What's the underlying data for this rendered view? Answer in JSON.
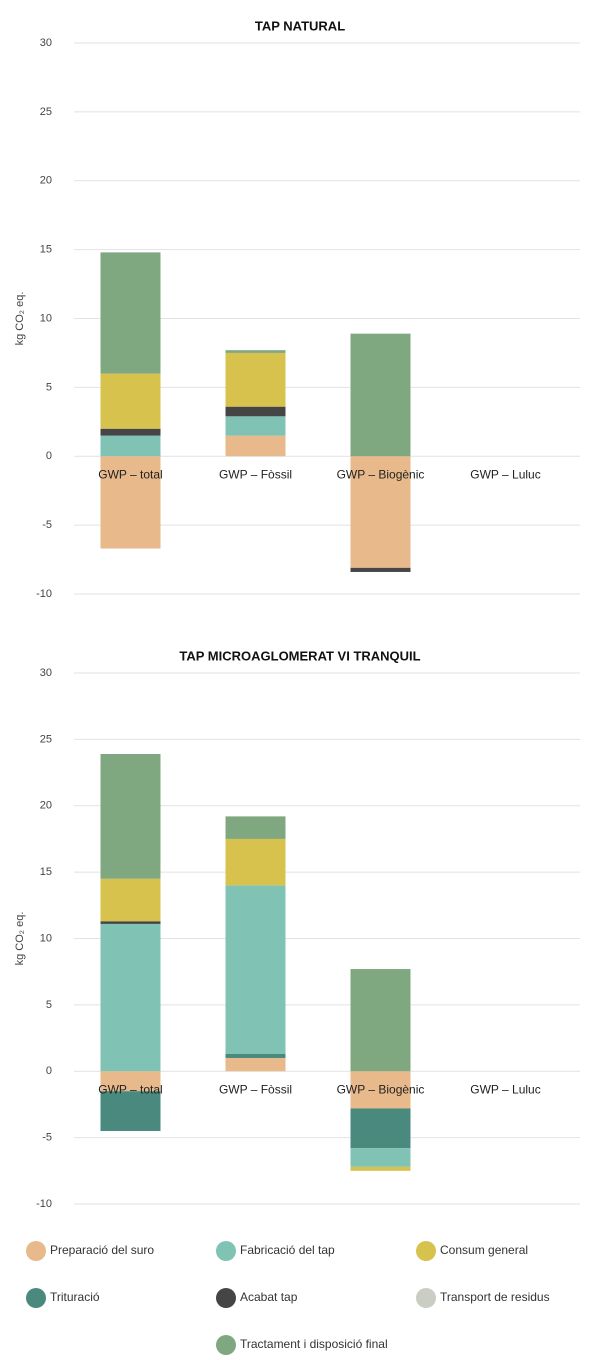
{
  "legend": [
    {
      "name": "Preparació del suro",
      "color": "#e8b98a"
    },
    {
      "name": "Trituració",
      "color": "#4a8a7e"
    },
    {
      "name": "Fabricació del tap",
      "color": "#80c3b5"
    },
    {
      "name": "Acabat tap",
      "color": "#454545"
    },
    {
      "name": "Consum general",
      "color": "#d8c24e"
    },
    {
      "name": "Transport de residus",
      "color": "#c9cdc3"
    },
    {
      "name": "Tractament i disposició final",
      "color": "#80a880"
    }
  ],
  "chart_data": [
    {
      "type": "stacked_bar",
      "title": "TAP NATURAL",
      "ylabel": "kg CO₂ eq.",
      "categories": [
        "GWP – total",
        "GWP – Fòssil",
        "GWP – Biogènic",
        "GWP – Luluc"
      ],
      "ylim": [
        -10,
        30
      ],
      "yticks": [
        -10,
        -5,
        0,
        5,
        10,
        15,
        20,
        25,
        30
      ],
      "grid": true,
      "series": [
        {
          "values": [
            -6.7,
            1.5,
            -8.1,
            0
          ]
        },
        {
          "values": [
            0,
            0,
            0,
            0
          ]
        },
        {
          "values": [
            1.5,
            1.4,
            0,
            0
          ]
        },
        {
          "values": [
            0.5,
            0.7,
            -0.3,
            0
          ]
        },
        {
          "values": [
            4.0,
            3.9,
            0,
            0
          ]
        },
        {
          "values": [
            0,
            0,
            0,
            0
          ]
        },
        {
          "values": [
            8.8,
            0.2,
            8.9,
            0
          ]
        }
      ]
    },
    {
      "type": "stacked_bar",
      "title": "TAP MICROAGLOMERAT VI TRANQUIL",
      "ylabel": "kg CO₂ eq.",
      "categories": [
        "GWP – total",
        "GWP – Fòssil",
        "GWP – Biogènic",
        "GWP – Luluc"
      ],
      "ylim": [
        -10,
        30
      ],
      "yticks": [
        -10,
        -5,
        0,
        5,
        10,
        15,
        20,
        25,
        30
      ],
      "grid": true,
      "series": [
        {
          "values": [
            -1.5,
            1.0,
            -2.8,
            0
          ]
        },
        {
          "values": [
            -3.0,
            0.3,
            -3.0,
            0
          ]
        },
        {
          "values": [
            11.1,
            12.7,
            -1.4,
            0
          ]
        },
        {
          "values": [
            0.2,
            0,
            0,
            0
          ]
        },
        {
          "values": [
            3.2,
            3.5,
            -0.3,
            0
          ]
        },
        {
          "values": [
            0,
            0,
            0,
            0
          ]
        },
        {
          "values": [
            9.4,
            1.7,
            7.7,
            0
          ]
        }
      ]
    }
  ]
}
